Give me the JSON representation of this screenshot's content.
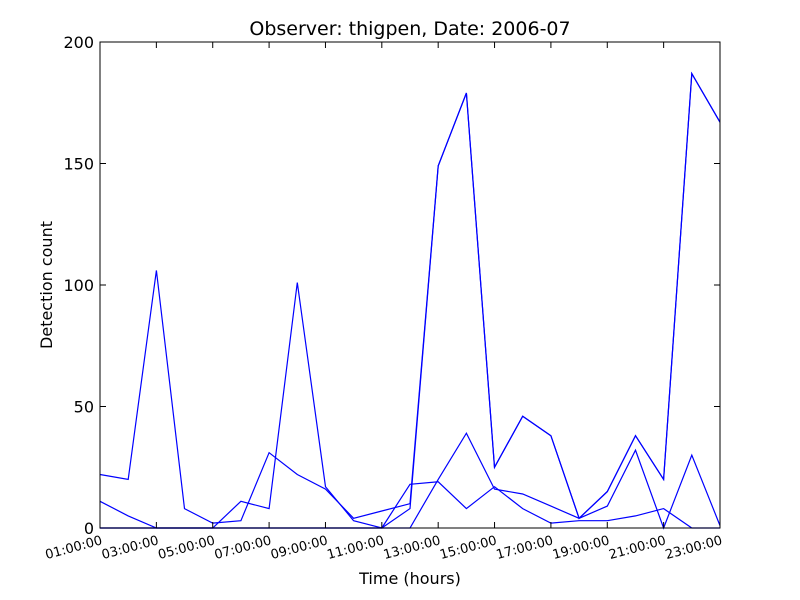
{
  "chart_data": {
    "type": "line",
    "title": "Observer: thigpen, Date: 2006-07",
    "xlabel": "Time (hours)",
    "ylabel": "Detection count",
    "ylim": [
      0,
      200
    ],
    "xlim": [
      0,
      22
    ],
    "grid": false,
    "x_ticks": [
      {
        "value": 0,
        "label": "01:00:00"
      },
      {
        "value": 2,
        "label": "03:00:00"
      },
      {
        "value": 4,
        "label": "05:00:00"
      },
      {
        "value": 6,
        "label": "07:00:00"
      },
      {
        "value": 8,
        "label": "09:00:00"
      },
      {
        "value": 10,
        "label": "11:00:00"
      },
      {
        "value": 12,
        "label": "13:00:00"
      },
      {
        "value": 14,
        "label": "15:00:00"
      },
      {
        "value": 16,
        "label": "17:00:00"
      },
      {
        "value": 18,
        "label": "19:00:00"
      },
      {
        "value": 20,
        "label": "21:00:00"
      },
      {
        "value": 22,
        "label": "23:00:00"
      }
    ],
    "y_ticks": [
      0,
      50,
      100,
      150,
      200
    ],
    "series_color": "#0000ff",
    "series": [
      {
        "x": [
          0,
          1,
          2,
          3,
          4,
          5,
          6,
          7,
          8,
          9,
          10,
          11,
          12,
          13,
          14,
          15,
          16,
          17,
          18,
          19,
          20,
          21,
          22
        ],
        "values": [
          22,
          20,
          106,
          8,
          2,
          3,
          31,
          22,
          16,
          4,
          7,
          10,
          149,
          179,
          25,
          46,
          38,
          4,
          15,
          38,
          20,
          187,
          167
        ]
      },
      {
        "x": [
          0,
          1,
          2,
          3,
          4,
          5,
          6,
          7,
          8,
          9,
          10,
          11,
          12,
          13,
          14,
          15,
          16,
          17,
          18,
          19,
          20,
          21,
          22
        ],
        "values": [
          11,
          5,
          0,
          0,
          0,
          0,
          0,
          0,
          0,
          0,
          0,
          8,
          149,
          179,
          25,
          46,
          38,
          4,
          15,
          38,
          20,
          187,
          167
        ]
      },
      {
        "x": [
          0,
          1,
          2,
          3,
          4,
          5,
          6,
          7,
          8,
          9,
          10,
          11,
          12,
          13,
          14,
          15,
          16,
          17,
          18,
          19,
          20,
          21,
          22
        ],
        "values": [
          0,
          0,
          0,
          0,
          0,
          11,
          8,
          101,
          17,
          3,
          0,
          18,
          19,
          8,
          17,
          8,
          2,
          3,
          3,
          5,
          8,
          0,
          0
        ]
      },
      {
        "x": [
          0,
          1,
          2,
          3,
          4,
          5,
          6,
          7,
          8,
          9,
          10,
          11,
          12,
          13,
          14,
          15,
          16,
          17,
          18,
          19,
          20,
          21,
          22
        ],
        "values": [
          0,
          0,
          0,
          0,
          0,
          0,
          0,
          0,
          0,
          0,
          0,
          0,
          20,
          39,
          16,
          14,
          9,
          4,
          9,
          32,
          0,
          30,
          1
        ]
      }
    ]
  }
}
